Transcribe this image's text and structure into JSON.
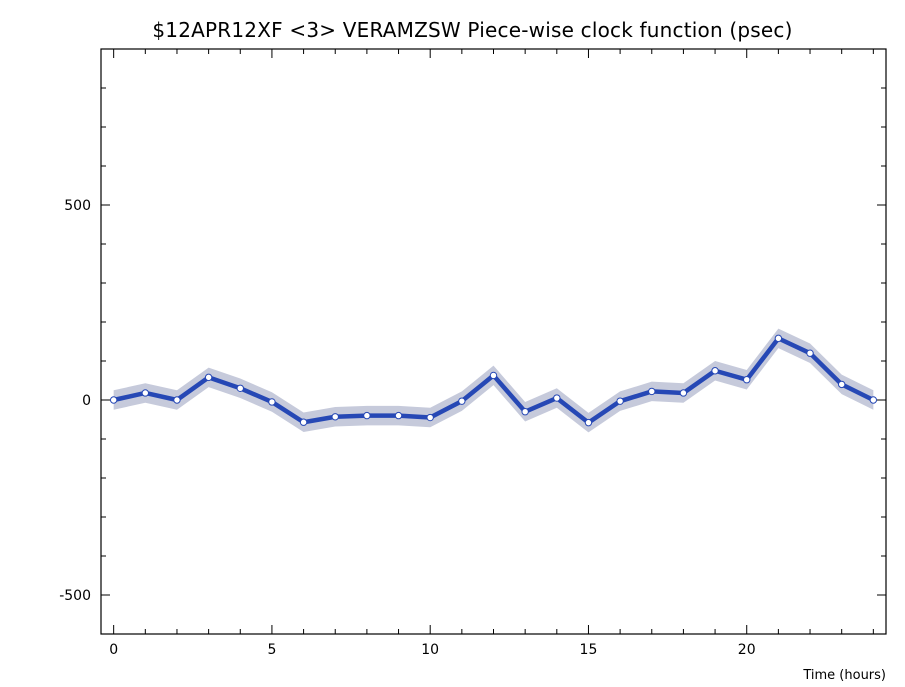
{
  "chart_data": {
    "type": "line",
    "title": "$12APR12XF <3>  VERAMZSW  Piece-wise clock function (psec)",
    "xlabel": "Time (hours)",
    "ylabel": "",
    "xlim": [
      -0.4,
      24.4
    ],
    "ylim": [
      -600,
      900
    ],
    "xticks": [
      0,
      5,
      10,
      15,
      20
    ],
    "yticks": [
      -500,
      0,
      500
    ],
    "grid": false,
    "band_halfwidth": 25,
    "series": [
      {
        "x": [
          0,
          1,
          2,
          3,
          4,
          5,
          6,
          7,
          8,
          9,
          10,
          11,
          12,
          13,
          14,
          15,
          16,
          17,
          18,
          19,
          20,
          21,
          22,
          23,
          24
        ],
        "values": [
          0,
          18,
          0,
          58,
          30,
          -5,
          -57,
          -43,
          -40,
          -40,
          -45,
          -3,
          63,
          -30,
          5,
          -58,
          -3,
          22,
          18,
          75,
          52,
          158,
          120,
          40,
          0
        ]
      }
    ],
    "colors": {
      "line": "#2648b5",
      "band": "#c6cadb",
      "marker_fill": "#ffffff",
      "axes": "#000000"
    }
  }
}
